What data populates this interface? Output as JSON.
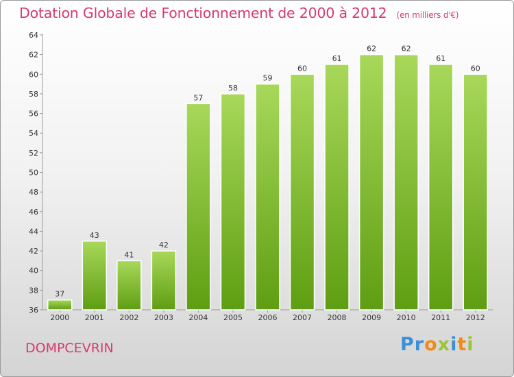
{
  "header": {
    "title": "Dotation Globale de Fonctionnement de 2000 à 2012",
    "subtitle": "(en milliers d'€)"
  },
  "footer": {
    "town": "DOMPCEVRIN",
    "logo": "Proxiti"
  },
  "chart_data": {
    "type": "bar",
    "title": "Dotation Globale de Fonctionnement de 2000 à 2012",
    "subtitle": "(en milliers d'€)",
    "categories": [
      "2000",
      "2001",
      "2002",
      "2003",
      "2004",
      "2005",
      "2006",
      "2007",
      "2008",
      "2009",
      "2010",
      "2011",
      "2012"
    ],
    "values": [
      37,
      43,
      41,
      42,
      57,
      58,
      59,
      60,
      61,
      62,
      62,
      61,
      60
    ],
    "ylim": [
      36,
      64
    ],
    "yticks": [
      36,
      38,
      40,
      42,
      44,
      46,
      48,
      50,
      52,
      54,
      56,
      58,
      60,
      62,
      64
    ],
    "grid": false,
    "colors": {
      "bar_light": "#a8d85a",
      "bar_dark": "#5e9e12",
      "title": "#d63b6b"
    }
  }
}
